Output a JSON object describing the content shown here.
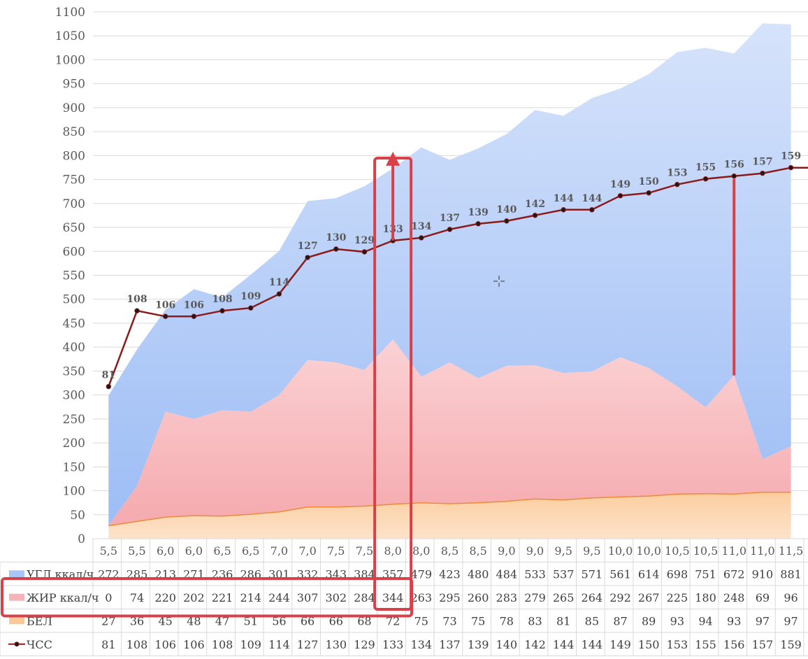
{
  "chart_data": {
    "type": "area",
    "categories": [
      "5,5",
      "5,5",
      "6,0",
      "6,0",
      "6,5",
      "6,5",
      "7,0",
      "7,0",
      "7,5",
      "7,5",
      "8,0",
      "8,0",
      "8,5",
      "8,5",
      "9,0",
      "9,0",
      "9,5",
      "9,5",
      "10,0",
      "10,0",
      "10,5",
      "10,5",
      "11,0",
      "11,0",
      "11,5"
    ],
    "ylim": [
      0,
      1100
    ],
    "yticks": [
      0,
      50,
      100,
      150,
      200,
      250,
      300,
      350,
      400,
      450,
      500,
      550,
      600,
      650,
      700,
      750,
      800,
      850,
      900,
      950,
      1000,
      1050,
      1100
    ],
    "grid": true,
    "legend": "table",
    "series": [
      {
        "name": "УГЛ ккал/ч",
        "type": "area",
        "color": "#a9c5f5",
        "values": [
          272,
          285,
          213,
          271,
          236,
          286,
          301,
          332,
          343,
          384,
          357,
          479,
          423,
          480,
          484,
          533,
          537,
          571,
          561,
          614,
          698,
          751,
          672,
          910,
          881
        ]
      },
      {
        "name": "ЖИР ккал/ч",
        "type": "area",
        "color": "#f7b3b7",
        "values": [
          0,
          74,
          220,
          202,
          221,
          214,
          244,
          307,
          302,
          284,
          344,
          263,
          295,
          260,
          283,
          279,
          265,
          264,
          292,
          267,
          225,
          180,
          248,
          69,
          96
        ]
      },
      {
        "name": "БЕЛ",
        "type": "area",
        "color": "#f9c99a",
        "values": [
          27,
          36,
          45,
          48,
          47,
          51,
          56,
          66,
          66,
          68,
          72,
          75,
          73,
          75,
          78,
          83,
          81,
          85,
          87,
          89,
          93,
          94,
          93,
          97,
          97
        ]
      },
      {
        "name": "ЧСС",
        "type": "line",
        "color": "#8b1a1a",
        "values": [
          81,
          108,
          106,
          106,
          108,
          109,
          114,
          127,
          130,
          129,
          133,
          134,
          137,
          139,
          140,
          142,
          144,
          144,
          149,
          150,
          153,
          155,
          156,
          157,
          159
        ]
      }
    ],
    "annotation_colors": {
      "highlight": "#d9404a"
    }
  }
}
